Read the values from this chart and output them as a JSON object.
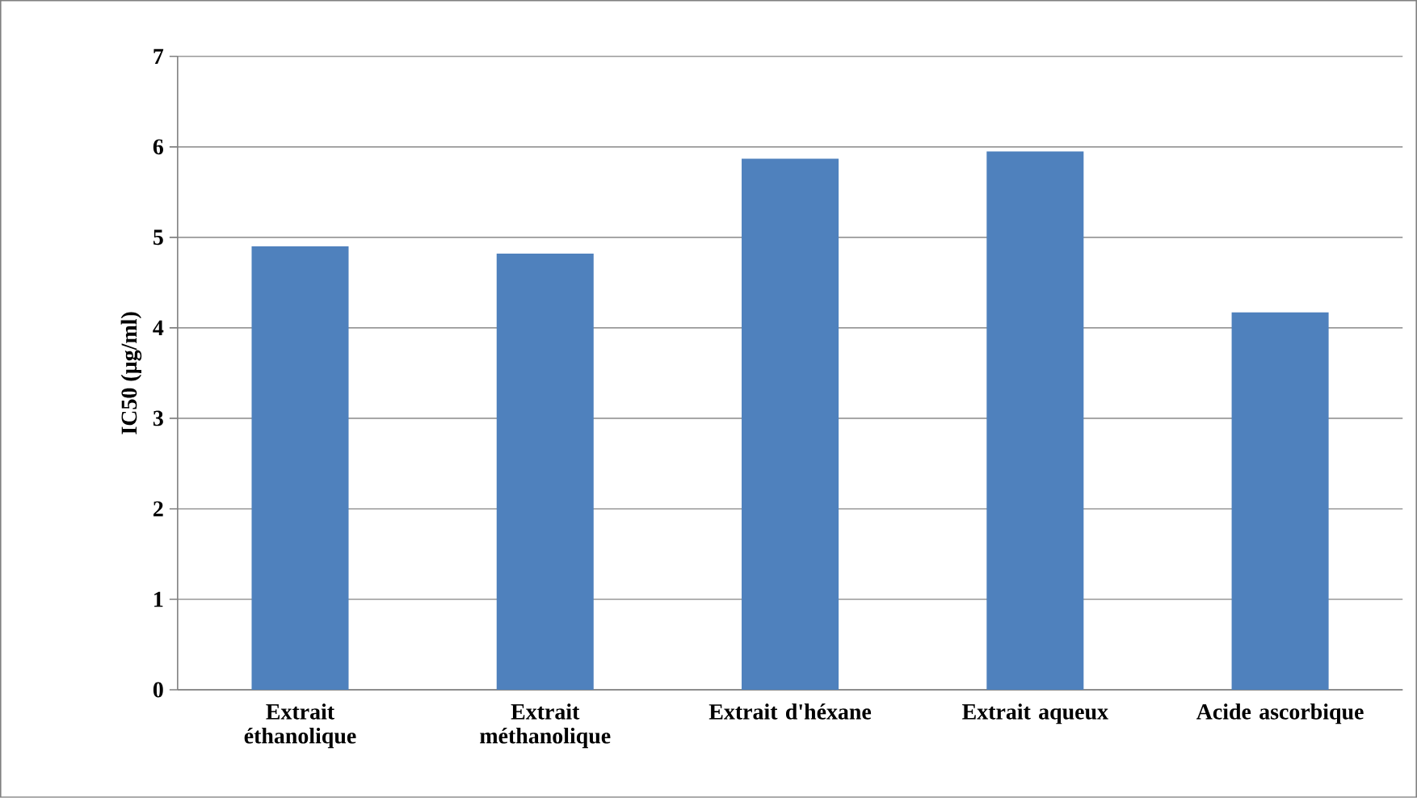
{
  "chart_data": {
    "type": "bar",
    "ylabel": "IC50 (µg/ml)",
    "categories": [
      "Extrait éthanolique",
      "Extrait méthanolique",
      "Extrait d'héxane",
      "Extrait aqueux",
      "Acide ascorbique"
    ],
    "values": [
      4.9,
      4.82,
      5.87,
      5.95,
      4.17
    ],
    "color": "#4f81bd",
    "ylim": [
      0,
      7
    ],
    "yticks": [
      0,
      1,
      2,
      3,
      4,
      5,
      6,
      7
    ],
    "grid": "y"
  }
}
